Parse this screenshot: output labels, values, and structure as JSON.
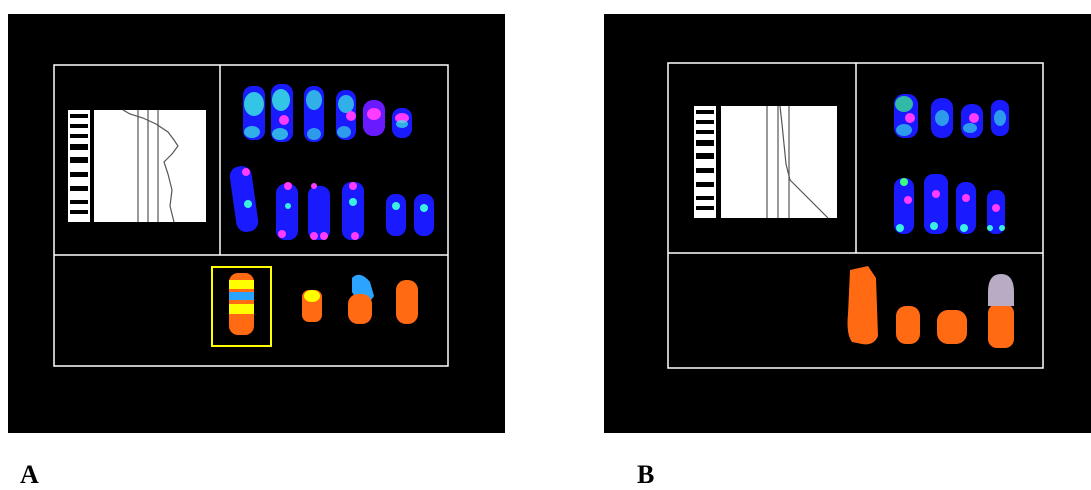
{
  "panels": [
    {
      "label": "A",
      "highlight_color": "#ffff00"
    },
    {
      "label": "B"
    }
  ],
  "colors": {
    "background": "#000000",
    "frame": "#ffffff",
    "dapi_blue": "#1a1aff",
    "fish_cyan": "#3af0e0",
    "fish_magenta": "#ff3cff",
    "fish_green": "#3cff80",
    "paint_orange": "#ff6a12",
    "paint_yellow": "#ffff00",
    "paint_skyblue": "#2aa4ff",
    "paint_lavender": "#b8acc4"
  }
}
